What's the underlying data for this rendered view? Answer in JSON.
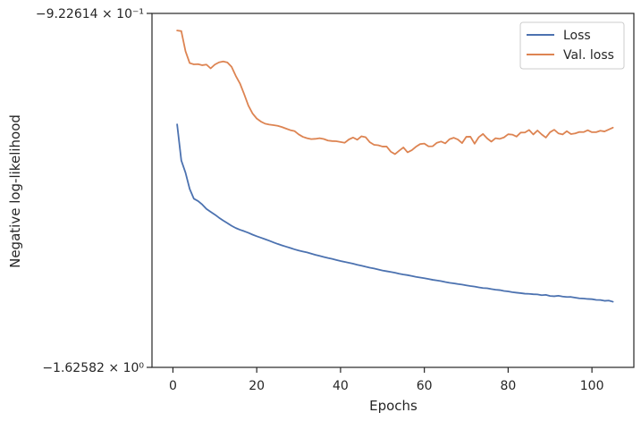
{
  "chart_data": {
    "type": "line",
    "xlabel": "Epochs",
    "ylabel": "Negative log-likelihood",
    "xlim": [
      -5,
      110
    ],
    "ylim": [
      -1.62582,
      -0.922614
    ],
    "xticks": [
      0,
      20,
      40,
      60,
      80,
      100
    ],
    "yticks": [
      {
        "value": -0.922614,
        "label": "−9.22614 × 10⁻¹"
      },
      {
        "value": -1.62582,
        "label": "−1.62582 × 10⁰"
      }
    ],
    "grid": false,
    "legend_position": "top-right",
    "colors": {
      "loss": "#4c72b0",
      "val_loss": "#dd8452",
      "axis": "#262626"
    },
    "series": [
      {
        "name": "Loss",
        "x": [
          1,
          2,
          3,
          4,
          5,
          6,
          7,
          8,
          9,
          10,
          11,
          12,
          13,
          14,
          15,
          16,
          17,
          18,
          19,
          20,
          21,
          22,
          23,
          24,
          25,
          26,
          27,
          28,
          29,
          30,
          31,
          32,
          33,
          34,
          35,
          36,
          37,
          38,
          39,
          40,
          41,
          42,
          43,
          44,
          45,
          46,
          47,
          48,
          49,
          50,
          51,
          52,
          53,
          54,
          55,
          56,
          57,
          58,
          59,
          60,
          61,
          62,
          63,
          64,
          65,
          66,
          67,
          68,
          69,
          70,
          71,
          72,
          73,
          74,
          75,
          76,
          77,
          78,
          79,
          80,
          81,
          82,
          83,
          84,
          85,
          86,
          87,
          88,
          89,
          90,
          91,
          92,
          93,
          94,
          95,
          96,
          97,
          98,
          99,
          100,
          101,
          102,
          103,
          104,
          105
        ],
        "y": [
          -1.1431,
          -1.2149,
          -1.239,
          -1.2713,
          -1.2908,
          -1.2954,
          -1.3024,
          -1.3111,
          -1.3168,
          -1.3223,
          -1.3285,
          -1.3341,
          -1.3393,
          -1.3446,
          -1.349,
          -1.3525,
          -1.3553,
          -1.3585,
          -1.3621,
          -1.3653,
          -1.3682,
          -1.3712,
          -1.3742,
          -1.3775,
          -1.3806,
          -1.3834,
          -1.386,
          -1.3885,
          -1.3913,
          -1.3937,
          -1.3956,
          -1.3975,
          -1.3999,
          -1.4022,
          -1.4043,
          -1.4065,
          -1.4085,
          -1.4103,
          -1.4124,
          -1.4146,
          -1.4162,
          -1.418,
          -1.4199,
          -1.422,
          -1.4238,
          -1.4259,
          -1.4278,
          -1.4294,
          -1.4314,
          -1.4333,
          -1.4348,
          -1.4362,
          -1.4378,
          -1.4398,
          -1.4413,
          -1.4426,
          -1.4442,
          -1.446,
          -1.4474,
          -1.4487,
          -1.4502,
          -1.4519,
          -1.4532,
          -1.4545,
          -1.4563,
          -1.4578,
          -1.4589,
          -1.4603,
          -1.4614,
          -1.4629,
          -1.4642,
          -1.4653,
          -1.4669,
          -1.4682,
          -1.4687,
          -1.4703,
          -1.4716,
          -1.4723,
          -1.474,
          -1.4749,
          -1.4765,
          -1.4774,
          -1.4783,
          -1.4794,
          -1.4798,
          -1.4805,
          -1.4809,
          -1.4825,
          -1.4817,
          -1.484,
          -1.4845,
          -1.4836,
          -1.4851,
          -1.486,
          -1.4859,
          -1.4873,
          -1.4887,
          -1.4891,
          -1.4899,
          -1.4903,
          -1.4917,
          -1.492,
          -1.4936,
          -1.4931,
          -1.4954
        ]
      },
      {
        "name": "Val. loss",
        "x": [
          1,
          2,
          3,
          4,
          5,
          6,
          7,
          8,
          9,
          10,
          11,
          12,
          13,
          14,
          15,
          16,
          17,
          18,
          19,
          20,
          21,
          22,
          23,
          24,
          25,
          26,
          27,
          28,
          29,
          30,
          31,
          32,
          33,
          34,
          35,
          36,
          37,
          38,
          39,
          40,
          41,
          42,
          43,
          44,
          45,
          46,
          47,
          48,
          49,
          50,
          51,
          52,
          53,
          54,
          55,
          56,
          57,
          58,
          59,
          60,
          61,
          62,
          63,
          64,
          65,
          66,
          67,
          68,
          69,
          70,
          71,
          72,
          73,
          74,
          75,
          76,
          77,
          78,
          79,
          80,
          81,
          82,
          83,
          84,
          85,
          86,
          87,
          88,
          89,
          90,
          91,
          92,
          93,
          94,
          95,
          96,
          97,
          98,
          99,
          100,
          101,
          102,
          103,
          104,
          105
        ],
        "y": [
          -0.9566,
          -0.9578,
          -0.9978,
          -1.0213,
          -1.0238,
          -1.0234,
          -1.0255,
          -1.0243,
          -1.0318,
          -1.0243,
          -1.0198,
          -1.0181,
          -1.0201,
          -1.0288,
          -1.0468,
          -1.0618,
          -1.083,
          -1.1057,
          -1.1213,
          -1.1315,
          -1.1375,
          -1.1417,
          -1.1434,
          -1.1446,
          -1.1459,
          -1.1484,
          -1.1515,
          -1.1545,
          -1.1563,
          -1.1629,
          -1.1678,
          -1.1705,
          -1.1724,
          -1.1718,
          -1.1705,
          -1.1721,
          -1.1752,
          -1.1762,
          -1.1765,
          -1.1781,
          -1.1796,
          -1.173,
          -1.1692,
          -1.1736,
          -1.1667,
          -1.1686,
          -1.1786,
          -1.1837,
          -1.1846,
          -1.1871,
          -1.1871,
          -1.1974,
          -1.2022,
          -1.1953,
          -1.1888,
          -1.1986,
          -1.1945,
          -1.1875,
          -1.1822,
          -1.1812,
          -1.1868,
          -1.1865,
          -1.1796,
          -1.1771,
          -1.1808,
          -1.1725,
          -1.1696,
          -1.1732,
          -1.1803,
          -1.1678,
          -1.1676,
          -1.1815,
          -1.1684,
          -1.1621,
          -1.171,
          -1.1774,
          -1.1705,
          -1.1718,
          -1.169,
          -1.1627,
          -1.1634,
          -1.1673,
          -1.1593,
          -1.1592,
          -1.1542,
          -1.1631,
          -1.1552,
          -1.163,
          -1.1693,
          -1.1587,
          -1.1537,
          -1.161,
          -1.1631,
          -1.1566,
          -1.1623,
          -1.161,
          -1.1581,
          -1.1584,
          -1.1546,
          -1.1586,
          -1.1586,
          -1.1557,
          -1.1571,
          -1.1534,
          -1.1496
        ]
      }
    ]
  }
}
